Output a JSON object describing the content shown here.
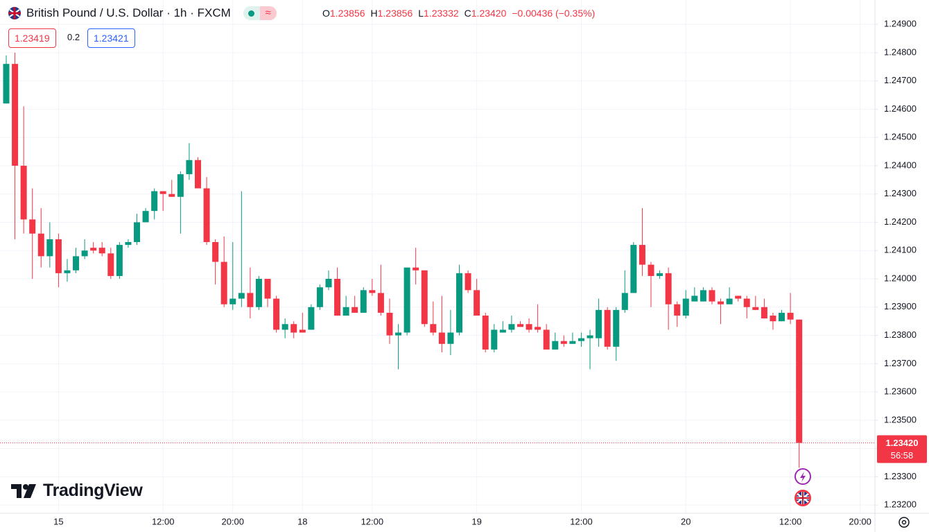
{
  "chart_data": {
    "type": "candlestick",
    "title": "British Pound / U.S. Dollar · 1h · FXCM",
    "legend": {
      "open_label": "O",
      "open": "1.23856",
      "high_label": "H",
      "high": "1.23856",
      "low_label": "L",
      "low": "1.23332",
      "close_label": "C",
      "close": "1.23420",
      "change": "−0.00436 (−0.35%)"
    },
    "bid": "1.23419",
    "spread": "0.2",
    "ask": "1.23421",
    "last_price": {
      "value": 1.2342,
      "label": "1.23420"
    },
    "countdown": "56:58",
    "brand": "TradingView",
    "colors": {
      "up": "#089981",
      "down": "#f23645"
    },
    "grid": true,
    "categories": [
      null,
      null,
      null,
      null,
      null,
      null,
      "15",
      null,
      null,
      null,
      null,
      null,
      null,
      null,
      null,
      null,
      null,
      null,
      "12:00",
      null,
      null,
      null,
      null,
      null,
      null,
      null,
      "20:00",
      null,
      null,
      null,
      null,
      null,
      null,
      null,
      "18",
      null,
      null,
      null,
      null,
      null,
      null,
      null,
      "12:00",
      null,
      null,
      null,
      null,
      null,
      null,
      null,
      null,
      null,
      null,
      null,
      "19",
      null,
      null,
      null,
      null,
      null,
      null,
      null,
      null,
      null,
      null,
      null,
      "12:00",
      null,
      null,
      null,
      null,
      null,
      null,
      null,
      null,
      null,
      null,
      null,
      "20",
      null,
      null,
      null,
      null,
      null,
      null,
      null,
      null,
      null,
      null,
      null,
      "12:00",
      null,
      null,
      null,
      null,
      null,
      null,
      null,
      "20:00",
      null
    ],
    "open": [
      1.2462,
      1.2476,
      1.244,
      1.2421,
      1.2416,
      1.2408,
      1.2414,
      1.2402,
      1.2403,
      1.2408,
      1.2411,
      1.2411,
      1.2409,
      1.2401,
      1.2412,
      1.2413,
      1.242,
      1.2424,
      1.2431,
      1.243,
      1.2429,
      1.2437,
      1.2442,
      1.2432,
      1.2413,
      1.2406,
      1.2391,
      1.2393,
      1.2395,
      1.239,
      1.24,
      1.2393,
      1.2382,
      1.2384,
      1.2382,
      1.2382,
      1.239,
      1.2397,
      1.24,
      1.2387,
      1.239,
      1.2388,
      1.2396,
      1.2395,
      1.2388,
      1.238,
      1.2381,
      1.2404,
      1.2403,
      1.2384,
      1.2381,
      1.2377,
      1.2381,
      1.2402,
      1.2396,
      1.2387,
      1.2375,
      1.2381,
      1.2382,
      1.2384,
      1.2384,
      1.2383,
      1.2382,
      1.2375,
      1.2378,
      1.2377,
      1.2378,
      1.2379,
      1.2379,
      1.2389,
      1.2376,
      1.2389,
      1.2395,
      1.2412,
      1.2405,
      1.2401,
      1.2402,
      1.2391,
      1.2387,
      1.2392,
      1.2392,
      1.2396,
      1.2392,
      1.2391,
      1.2394,
      1.2393,
      1.239,
      1.239,
      1.2387,
      1.2385,
      1.2388,
      1.23856,
      null,
      null,
      null,
      null,
      null,
      null,
      null,
      null
    ],
    "high": [
      1.2479,
      1.248,
      1.2461,
      1.2432,
      1.2425,
      1.242,
      1.2416,
      1.2407,
      1.2411,
      1.2414,
      1.2413,
      1.2413,
      1.2411,
      1.2413,
      1.2414,
      1.2423,
      1.2425,
      1.2432,
      1.2431,
      1.2435,
      1.2438,
      1.2448,
      1.2443,
      1.2436,
      1.2414,
      1.2415,
      1.2413,
      1.2431,
      1.2404,
      1.2401,
      1.24,
      1.2394,
      1.2386,
      1.2385,
      1.2388,
      1.2391,
      1.2398,
      1.2403,
      1.2404,
      1.2394,
      1.2394,
      1.2397,
      1.24,
      1.2405,
      1.2393,
      1.2384,
      1.2404,
      1.2411,
      1.2403,
      1.2392,
      1.2394,
      1.2389,
      1.2405,
      1.2403,
      1.24,
      1.2388,
      1.2384,
      1.2385,
      1.2387,
      1.2385,
      1.2386,
      1.2391,
      1.2384,
      1.2381,
      1.238,
      1.2381,
      1.2381,
      1.2382,
      1.2393,
      1.239,
      1.239,
      1.2403,
      1.2413,
      1.2425,
      1.2406,
      1.2403,
      1.2404,
      1.2392,
      1.2396,
      1.2397,
      1.2397,
      1.2397,
      1.2393,
      1.2397,
      1.2394,
      1.2394,
      1.2394,
      1.2393,
      1.2388,
      1.2389,
      1.2395,
      1.23856,
      null,
      null,
      null,
      null,
      null,
      null,
      null,
      null
    ],
    "low": [
      1.2462,
      1.2414,
      1.2416,
      1.24,
      1.2404,
      1.2404,
      1.2397,
      1.2399,
      1.2402,
      1.2407,
      1.2409,
      1.2408,
      1.24,
      1.24,
      1.2411,
      1.2412,
      1.242,
      1.2421,
      1.2424,
      1.2429,
      1.2416,
      1.2435,
      1.2432,
      1.2412,
      1.2398,
      1.239,
      1.2389,
      1.239,
      1.2386,
      1.2389,
      1.239,
      1.2381,
      1.2379,
      1.2379,
      1.2381,
      1.2382,
      1.2389,
      1.2396,
      1.2387,
      1.2387,
      1.2388,
      1.2388,
      1.2394,
      1.2387,
      1.2377,
      1.2368,
      1.238,
      1.2398,
      1.2383,
      1.238,
      1.2374,
      1.2373,
      1.238,
      1.2395,
      1.2387,
      1.2374,
      1.2374,
      1.2381,
      1.2381,
      1.2383,
      1.2381,
      1.2381,
      1.2375,
      1.2375,
      1.2376,
      1.2377,
      1.2376,
      1.2368,
      1.2376,
      1.2375,
      1.2371,
      1.2388,
      1.2395,
      1.2401,
      1.239,
      1.24,
      1.2382,
      1.2383,
      1.2386,
      1.2392,
      1.2392,
      1.2391,
      1.2384,
      1.2391,
      1.2392,
      1.2386,
      1.2389,
      1.2386,
      1.2382,
      1.2385,
      1.2384,
      1.23332,
      null,
      null,
      null,
      null,
      null,
      null,
      null,
      null
    ],
    "close": [
      1.2476,
      1.244,
      1.2421,
      1.2416,
      1.2408,
      1.2414,
      1.2402,
      1.2403,
      1.2408,
      1.241,
      1.241,
      1.2409,
      1.2401,
      1.2412,
      1.2413,
      1.242,
      1.2424,
      1.2431,
      1.243,
      1.2429,
      1.2437,
      1.2442,
      1.2432,
      1.2413,
      1.2406,
      1.2391,
      1.2393,
      1.2395,
      1.239,
      1.24,
      1.2393,
      1.2382,
      1.2384,
      1.2381,
      1.2381,
      1.239,
      1.2397,
      1.24,
      1.2387,
      1.239,
      1.2388,
      1.2396,
      1.2395,
      1.2388,
      1.238,
      1.2381,
      1.2404,
      1.2403,
      1.2384,
      1.2381,
      1.2377,
      1.2381,
      1.2402,
      1.2396,
      1.2387,
      1.2375,
      1.2382,
      1.2382,
      1.2384,
      1.2383,
      1.2382,
      1.2382,
      1.2375,
      1.2378,
      1.2377,
      1.2378,
      1.2379,
      1.238,
      1.2389,
      1.2376,
      1.2389,
      1.2395,
      1.2412,
      1.2405,
      1.2401,
      1.2402,
      1.2391,
      1.2387,
      1.2393,
      1.2394,
      1.2396,
      1.2392,
      1.2391,
      1.2393,
      1.2393,
      1.239,
      1.2389,
      1.2386,
      1.2385,
      1.2388,
      1.23856,
      1.2342,
      null,
      null,
      null,
      null,
      null,
      null,
      null,
      null
    ],
    "ylim": [
      1.23171,
      1.24986
    ],
    "yticks": [
      {
        "value": 1.232,
        "label": "1.23200"
      },
      {
        "value": 1.233,
        "label": "1.23300"
      },
      {
        "value": 1.234,
        "label": "1.23400"
      },
      {
        "value": 1.235,
        "label": "1.23500"
      },
      {
        "value": 1.236,
        "label": "1.23600"
      },
      {
        "value": 1.237,
        "label": "1.23700"
      },
      {
        "value": 1.238,
        "label": "1.23800"
      },
      {
        "value": 1.239,
        "label": "1.23900"
      },
      {
        "value": 1.24,
        "label": "1.24000"
      },
      {
        "value": 1.241,
        "label": "1.24100"
      },
      {
        "value": 1.242,
        "label": "1.24200"
      },
      {
        "value": 1.243,
        "label": "1.24300"
      },
      {
        "value": 1.244,
        "label": "1.24400"
      },
      {
        "value": 1.245,
        "label": "1.24500"
      },
      {
        "value": 1.246,
        "label": "1.24600"
      },
      {
        "value": 1.247,
        "label": "1.24700"
      },
      {
        "value": 1.248,
        "label": "1.24800"
      },
      {
        "value": 1.249,
        "label": "1.24900"
      }
    ]
  }
}
